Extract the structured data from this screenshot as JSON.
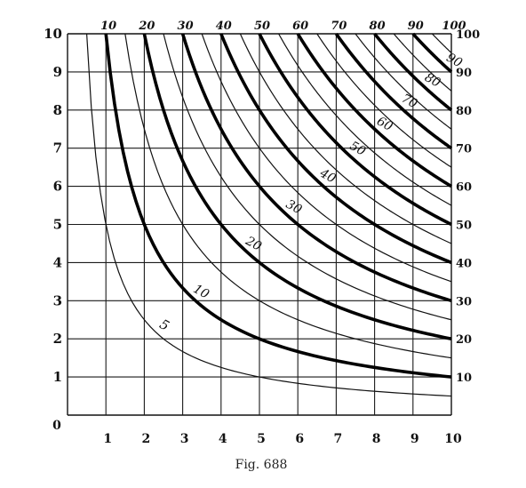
{
  "figure": {
    "caption": "Fig. 688",
    "x_ticks": [
      "0",
      "1",
      "2",
      "3",
      "4",
      "5",
      "6",
      "7",
      "8",
      "9",
      "10"
    ],
    "y_ticks": [
      "1",
      "2",
      "3",
      "4",
      "5",
      "6",
      "7",
      "8",
      "9",
      "10"
    ],
    "top_ticks": [
      "10",
      "20",
      "30",
      "40",
      "50",
      "60",
      "70",
      "80",
      "90",
      "100"
    ],
    "right_ticks": [
      "10",
      "20",
      "30",
      "40",
      "50",
      "60",
      "70",
      "80",
      "90",
      "100"
    ],
    "axis_range": {
      "x": [
        0,
        10
      ],
      "y": [
        0,
        10
      ]
    },
    "curves": [
      {
        "product": 5,
        "label": "5",
        "weight": "thin"
      },
      {
        "product": 10,
        "label": "10",
        "weight": "thick"
      },
      {
        "product": 15,
        "label": "",
        "weight": "thin"
      },
      {
        "product": 20,
        "label": "20",
        "weight": "thick"
      },
      {
        "product": 25,
        "label": "",
        "weight": "thin"
      },
      {
        "product": 30,
        "label": "30",
        "weight": "thick"
      },
      {
        "product": 35,
        "label": "",
        "weight": "thin"
      },
      {
        "product": 40,
        "label": "40",
        "weight": "thick"
      },
      {
        "product": 45,
        "label": "",
        "weight": "thin"
      },
      {
        "product": 50,
        "label": "50",
        "weight": "thick"
      },
      {
        "product": 55,
        "label": "",
        "weight": "thin"
      },
      {
        "product": 60,
        "label": "60",
        "weight": "thick"
      },
      {
        "product": 65,
        "label": "",
        "weight": "thin"
      },
      {
        "product": 70,
        "label": "70",
        "weight": "thick"
      },
      {
        "product": 75,
        "label": "",
        "weight": "thin"
      },
      {
        "product": 80,
        "label": "80",
        "weight": "thick"
      },
      {
        "product": 85,
        "label": "",
        "weight": "thin"
      },
      {
        "product": 90,
        "label": "90",
        "weight": "thick"
      },
      {
        "product": 95,
        "label": "",
        "weight": "thin"
      }
    ]
  }
}
